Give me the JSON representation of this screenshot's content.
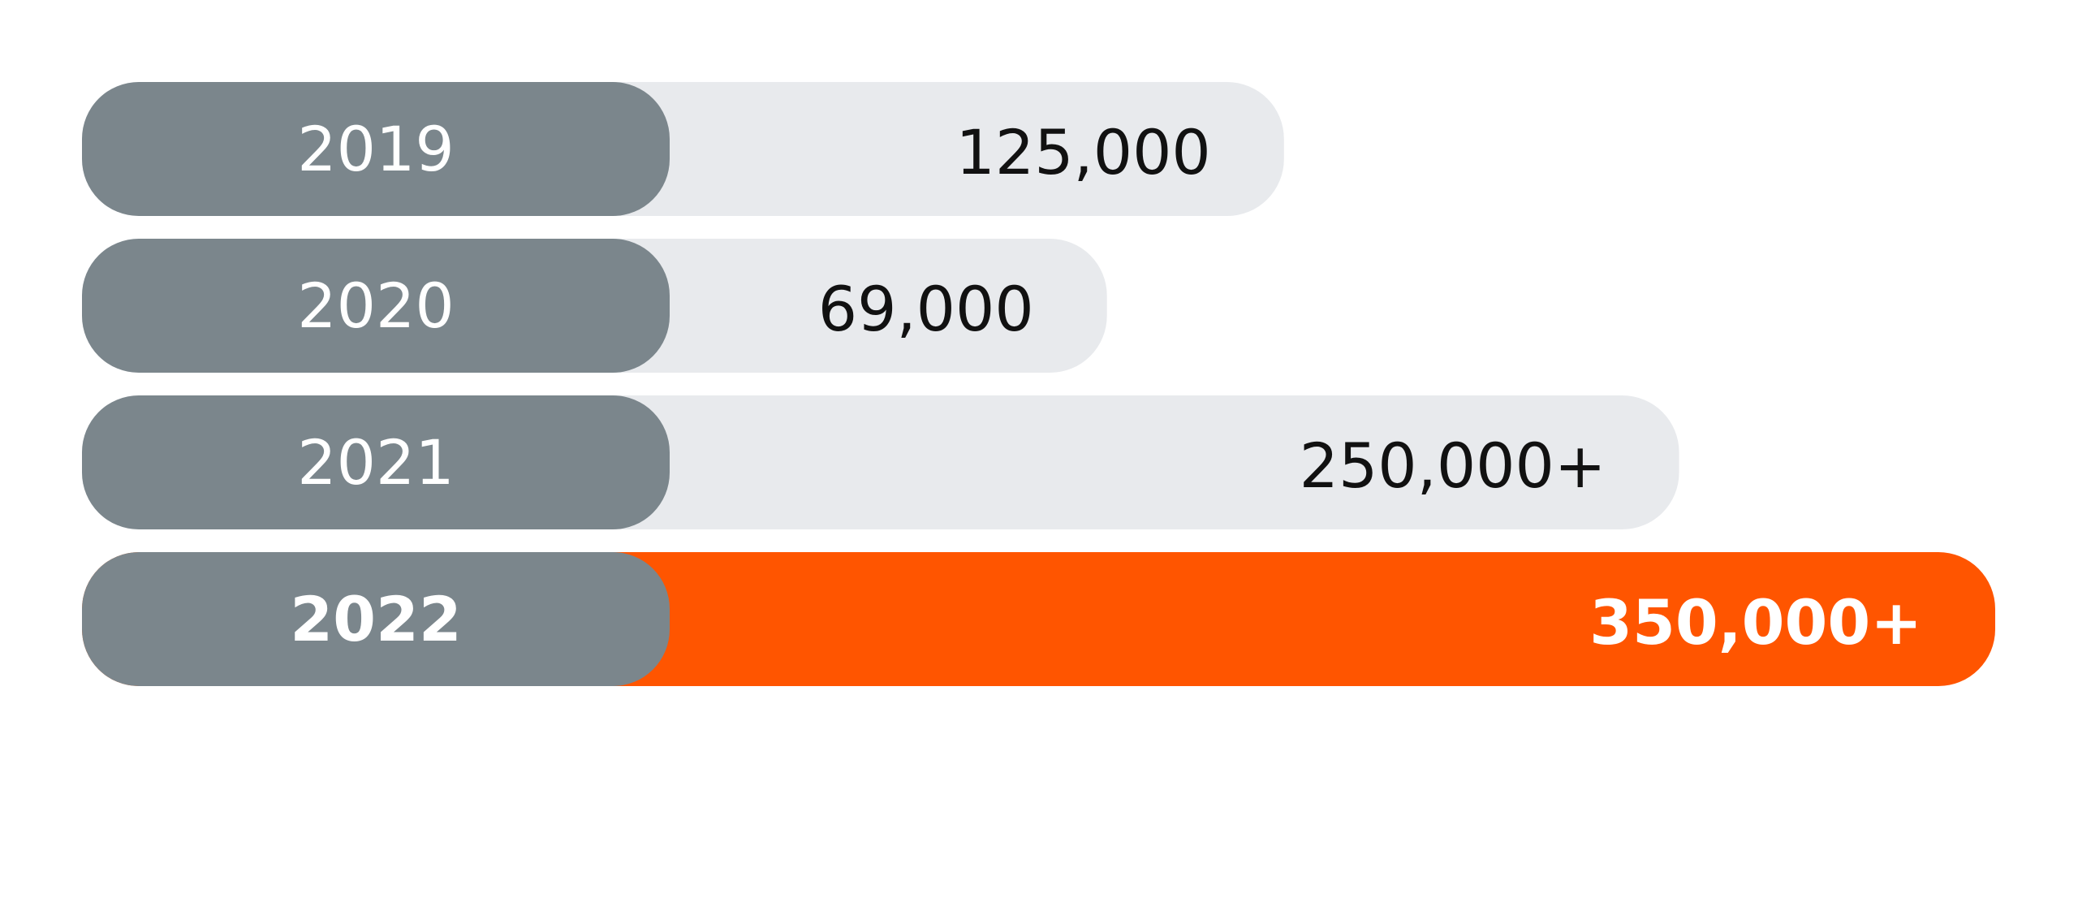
{
  "chart_data": {
    "type": "bar",
    "orientation": "horizontal",
    "categories": [
      "2019",
      "2020",
      "2021",
      "2022"
    ],
    "values": [
      125000,
      69000,
      250000,
      350000
    ],
    "value_labels": [
      "125,000",
      "69,000",
      "250,000+",
      "350,000+"
    ],
    "color": "#e8eaed",
    "highlight": 3,
    "highlight_color": "#ff5500",
    "label_color": "#7b868c"
  }
}
